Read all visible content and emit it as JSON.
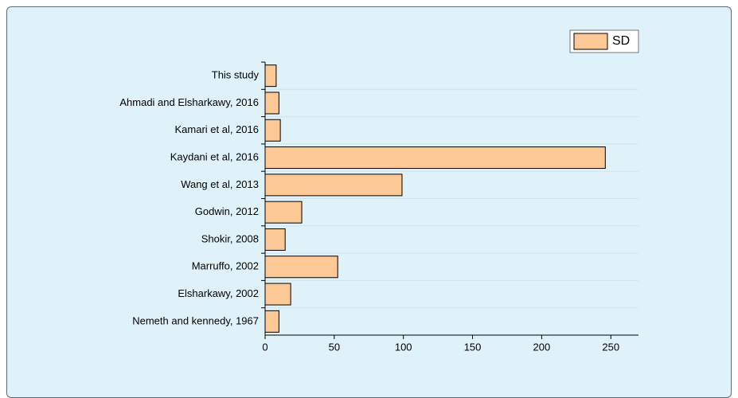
{
  "chart_data": {
    "type": "bar",
    "orientation": "horizontal",
    "categories": [
      "This study",
      "Ahmadi and Elsharkawy, 2016",
      "Kamari et al, 2016",
      "Kaydani et al, 2016",
      "Wang et al, 2013",
      "Godwin, 2012",
      "Shokir, 2008",
      "Marruffo, 2002",
      "Elsharkawy, 2002",
      "Nemeth and kennedy, 1967"
    ],
    "series": [
      {
        "name": "SD",
        "color": "#fcc896",
        "values": [
          8,
          10,
          11,
          246,
          99,
          26.5,
          14.5,
          52.5,
          18.5,
          10
        ]
      }
    ],
    "xlim": [
      0,
      270
    ],
    "xticks": [
      0,
      50,
      100,
      150,
      200,
      250
    ],
    "grid": true,
    "legend": "top-right"
  }
}
